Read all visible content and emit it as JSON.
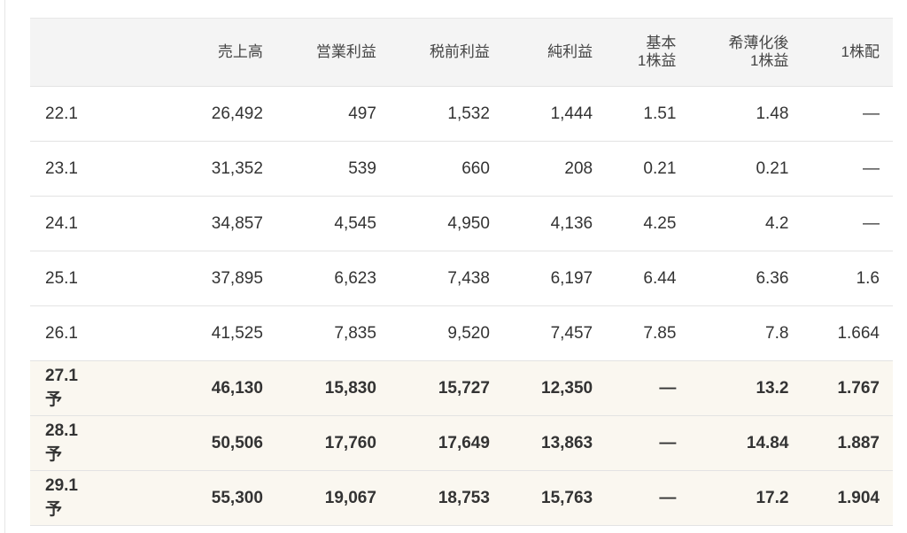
{
  "table": {
    "headers": [
      "",
      "売上高",
      "営業利益",
      "税前利益",
      "純利益",
      [
        "基本",
        "1株益"
      ],
      [
        "希薄化後",
        "1株益"
      ],
      "1株配"
    ],
    "rows": [
      {
        "forecast": false,
        "cells": [
          "22.1",
          "26,492",
          "497",
          "1,532",
          "1,444",
          "1.51",
          "1.48",
          "—"
        ]
      },
      {
        "forecast": false,
        "cells": [
          "23.1",
          "31,352",
          "539",
          "660",
          "208",
          "0.21",
          "0.21",
          "—"
        ]
      },
      {
        "forecast": false,
        "cells": [
          "24.1",
          "34,857",
          "4,545",
          "4,950",
          "4,136",
          "4.25",
          "4.2",
          "—"
        ]
      },
      {
        "forecast": false,
        "cells": [
          "25.1",
          "37,895",
          "6,623",
          "7,438",
          "6,197",
          "6.44",
          "6.36",
          "1.6"
        ]
      },
      {
        "forecast": false,
        "cells": [
          "26.1",
          "41,525",
          "7,835",
          "9,520",
          "7,457",
          "7.85",
          "7.8",
          "1.664"
        ]
      },
      {
        "forecast": true,
        "cells": [
          "27.1予",
          "46,130",
          "15,830",
          "15,727",
          "12,350",
          "—",
          "13.2",
          "1.767"
        ]
      },
      {
        "forecast": true,
        "cells": [
          "28.1予",
          "50,506",
          "17,760",
          "17,649",
          "13,863",
          "—",
          "14.84",
          "1.887"
        ]
      },
      {
        "forecast": true,
        "cells": [
          "29.1予",
          "55,300",
          "19,067",
          "18,753",
          "15,763",
          "—",
          "17.2",
          "1.904"
        ]
      }
    ]
  },
  "colors": {
    "header_bg": "#f4f4f4",
    "forecast_bg": "#faf7f0",
    "text": "#333333"
  }
}
